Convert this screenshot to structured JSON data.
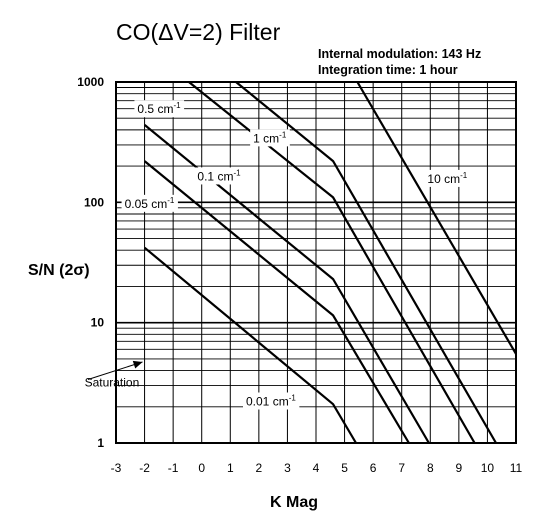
{
  "chart_data": {
    "type": "line",
    "title": "CO(ΔV=2) Filter",
    "notes": [
      "Internal modulation: 143 Hz",
      "Integration time: 1 hour"
    ],
    "xlabel": "K Mag",
    "ylabel": "S/N (2σ)",
    "xlim": [
      -3,
      11
    ],
    "ylim": [
      1,
      1000
    ],
    "yscale": "log",
    "grid": true,
    "x_ticks": [
      "-3",
      "-2",
      "-1",
      "0",
      "1",
      "2",
      "3",
      "4",
      "5",
      "6",
      "7",
      "8",
      "9",
      "10",
      "11"
    ],
    "y_ticks": [
      "1",
      "10",
      "100",
      "1000"
    ],
    "series": [
      {
        "name": "0.01 cm",
        "superscript": "-1",
        "x": [
          -2,
          4.6,
          5.4
        ],
        "y": [
          42,
          2.1,
          1
        ]
      },
      {
        "name": "0.05 cm",
        "superscript": "-1",
        "x": [
          -2,
          4.6,
          7.25
        ],
        "y": [
          220,
          11.5,
          1
        ]
      },
      {
        "name": "0.1 cm",
        "superscript": "-1",
        "x": [
          -2,
          4.6,
          7.95
        ],
        "y": [
          440,
          23,
          1
        ]
      },
      {
        "name": "0.5 cm",
        "superscript": "-1",
        "x": [
          -0.45,
          4.6,
          9.55
        ],
        "y": [
          1000,
          110,
          1
        ]
      },
      {
        "name": "1 cm",
        "superscript": "-1",
        "x": [
          1.2,
          4.6,
          10.3
        ],
        "y": [
          1000,
          220,
          1
        ]
      },
      {
        "name": "10 cm",
        "superscript": "-1",
        "x": [
          5.45,
          11
        ],
        "y": [
          1000,
          5.5
        ]
      }
    ],
    "annotations": [
      {
        "text": "Saturation",
        "x": -4.1,
        "y": 2.95,
        "arrow_to_x": -2.0,
        "arrow_to_y": 4.9
      }
    ]
  }
}
